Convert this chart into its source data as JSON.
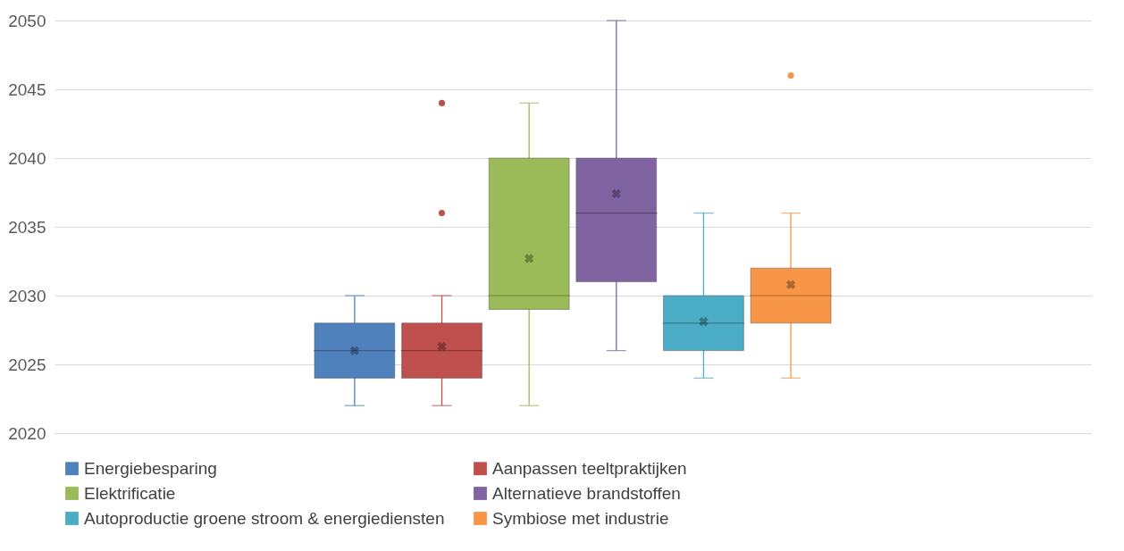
{
  "chart_data": {
    "type": "box",
    "categories": [
      null
    ],
    "ylim": [
      2020,
      2050
    ],
    "yticks": [
      2020,
      2025,
      2030,
      2035,
      2040,
      2045,
      2050
    ],
    "grid": "y",
    "legend": "bottom",
    "series": [
      {
        "name": "Energiebesparing",
        "color": "#4f81bd",
        "boxes": [
          {
            "low": 2022,
            "q1": 2024,
            "median": 2026,
            "q3": 2028,
            "high": 2030,
            "mean": 2026
          }
        ]
      },
      {
        "name": "Aanpassen teeltpraktijken",
        "color": "#c0504d",
        "boxes": [
          {
            "low": 2022,
            "q1": 2024,
            "median": 2026,
            "q3": 2028,
            "high": 2030,
            "mean": 2026.3,
            "outliers": [
              2036,
              2044
            ]
          }
        ]
      },
      {
        "name": "Elektrificatie",
        "color": "#9bbb59",
        "boxes": [
          {
            "low": 2022,
            "q1": 2029,
            "median": 2030,
            "q3": 2040,
            "high": 2044,
            "mean": 2032.7
          }
        ]
      },
      {
        "name": "Alternatieve brandstoffen",
        "color": "#8064a2",
        "boxes": [
          {
            "low": 2026,
            "q1": 2031,
            "median": 2036,
            "q3": 2040,
            "high": 2050,
            "mean": 2037.4
          }
        ]
      },
      {
        "name": "Autoproductie groene stroom & energiediensten",
        "color": "#4bacc6",
        "boxes": [
          {
            "low": 2024,
            "q1": 2026,
            "median": 2028,
            "q3": 2030,
            "high": 2036,
            "mean": 2028.1
          }
        ]
      },
      {
        "name": "Symbiose met industrie",
        "color": "#f79646",
        "boxes": [
          {
            "low": 2024,
            "q1": 2028,
            "median": 2030,
            "q3": 2032,
            "high": 2036,
            "mean": 2030.8,
            "outliers": [
              2046
            ]
          }
        ]
      }
    ]
  }
}
